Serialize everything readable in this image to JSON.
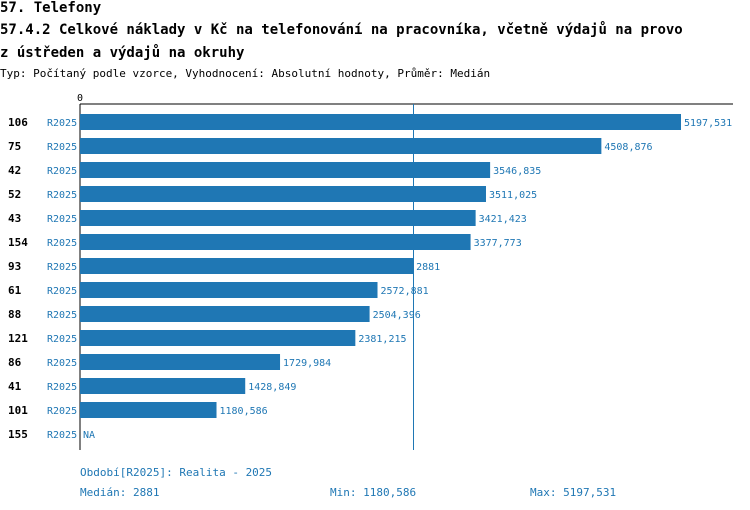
{
  "header": {
    "section": "57. Telefony",
    "title_line1": "57.4.2 Celkové náklady v Kč na telefonování na pracovníka, včetně výdajů na provo",
    "title_line2": "z ústředen a výdajů na okruhy",
    "subtitle": "Typ: Počítaný podle vzorce, Vyhodnocení: Absolutní hodnoty, Průměr: Medián"
  },
  "chart_data": {
    "type": "bar",
    "orientation": "horizontal",
    "xlim": [
      0,
      5197.531
    ],
    "x_tick_labels": [
      "0"
    ],
    "median_line": 2881,
    "colors": {
      "bar": "#1f77b4",
      "label": "#1f77b4",
      "text": "#000000",
      "axis": "#000000"
    },
    "rows": [
      {
        "id": "106",
        "period": "R2025",
        "value": 5197.531,
        "label": "5197,531"
      },
      {
        "id": "75",
        "period": "R2025",
        "value": 4508.876,
        "label": "4508,876"
      },
      {
        "id": "42",
        "period": "R2025",
        "value": 3546.835,
        "label": "3546,835"
      },
      {
        "id": "52",
        "period": "R2025",
        "value": 3511.025,
        "label": "3511,025"
      },
      {
        "id": "43",
        "period": "R2025",
        "value": 3421.423,
        "label": "3421,423"
      },
      {
        "id": "154",
        "period": "R2025",
        "value": 3377.773,
        "label": "3377,773"
      },
      {
        "id": "93",
        "period": "R2025",
        "value": 2881,
        "label": "2881"
      },
      {
        "id": "61",
        "period": "R2025",
        "value": 2572.881,
        "label": "2572,881"
      },
      {
        "id": "88",
        "period": "R2025",
        "value": 2504.396,
        "label": "2504,396"
      },
      {
        "id": "121",
        "period": "R2025",
        "value": 2381.215,
        "label": "2381,215"
      },
      {
        "id": "86",
        "period": "R2025",
        "value": 1729.984,
        "label": "1729,984"
      },
      {
        "id": "41",
        "period": "R2025",
        "value": 1428.849,
        "label": "1428,849"
      },
      {
        "id": "101",
        "period": "R2025",
        "value": 1180.586,
        "label": "1180,586"
      },
      {
        "id": "155",
        "period": "R2025",
        "value": null,
        "label": "NA"
      }
    ]
  },
  "footer": {
    "period": "Období[R2025]: Realita - 2025",
    "median": "Medián: 2881",
    "min": "Min: 1180,586",
    "max": "Max: 5197,531"
  }
}
